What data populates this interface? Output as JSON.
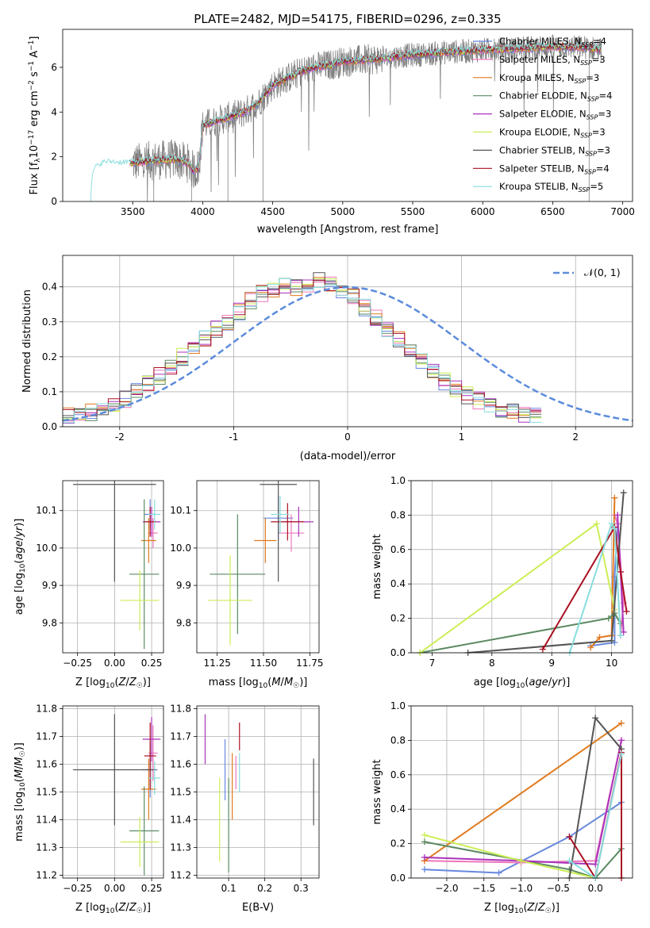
{
  "title": "PLATE=2482, MJD=54175, FIBERID=0296, z=0.335",
  "colors": {
    "chabrier_miles": "#6688dd",
    "salpeter_miles": "#ee77bb",
    "kroupa_miles": "#e07a1f",
    "chabrier_elodie": "#5a8a62",
    "salpeter_elodie": "#aa33bb",
    "kroupa_elodie": "#ccee55",
    "chabrier_stelib": "#555555",
    "salpeter_stelib": "#aa1122",
    "kroupa_stelib": "#88dddd",
    "observed": "#808080",
    "gaussian": "#5b8bdc",
    "grid": "#b0b0b0"
  },
  "chart_data": [
    {
      "id": "spectrum",
      "type": "line",
      "xlabel": "wavelength [Angstrom, rest frame]",
      "ylabel": "Flux [f_λ 10^-17 erg cm^-2 s^-1 A^-1]",
      "xlim": [
        3000,
        7070
      ],
      "ylim": [
        0,
        7.7
      ],
      "xticks": [
        3500,
        4000,
        4500,
        5000,
        5500,
        6000,
        6500,
        7000
      ],
      "yticks": [
        0,
        2,
        4,
        6
      ],
      "grid": false,
      "legend_position": "right",
      "legend": [
        {
          "main": "Chabrier MILES, N",
          "sub": "SSP",
          "tail": "=4",
          "key": "chabrier_miles"
        },
        {
          "main": "Salpeter MILES, N",
          "sub": "SSP",
          "tail": "=3",
          "key": "salpeter_miles"
        },
        {
          "main": "Kroupa MILES, N",
          "sub": "SSP",
          "tail": "=3",
          "key": "kroupa_miles"
        },
        {
          "main": "Chabrier ELODIE, N",
          "sub": "SSP",
          "tail": "=4",
          "key": "chabrier_elodie"
        },
        {
          "main": "Salpeter ELODIE, N",
          "sub": "SSP",
          "tail": "=3",
          "key": "salpeter_elodie"
        },
        {
          "main": "Kroupa ELODIE, N",
          "sub": "SSP",
          "tail": "=3",
          "key": "kroupa_elodie"
        },
        {
          "main": "Chabrier STELIB, N",
          "sub": "SSP",
          "tail": "=3",
          "key": "chabrier_stelib"
        },
        {
          "main": "Salpeter STELIB, N",
          "sub": "SSP",
          "tail": "=4",
          "key": "salpeter_stelib"
        },
        {
          "main": "Kroupa STELIB, N",
          "sub": "SSP",
          "tail": "=5",
          "key": "kroupa_stelib"
        }
      ],
      "model_continuum": {
        "x": [
          3200,
          3210,
          3220,
          3260,
          3300,
          3350,
          3400,
          3500,
          3600,
          3700,
          3800,
          3850,
          3900,
          3930,
          3970,
          4000,
          4100,
          4200,
          4300,
          4400,
          4500,
          4600,
          4700,
          4800,
          4900,
          5000,
          5100,
          5200,
          5300,
          5400,
          5500,
          5600,
          5700,
          5800,
          5900,
          6000,
          6100,
          6200,
          6300,
          6400,
          6500,
          6600,
          6700,
          6800,
          6850
        ],
        "y": [
          0,
          1.0,
          1.35,
          1.6,
          1.7,
          1.72,
          1.68,
          1.72,
          1.8,
          1.85,
          1.9,
          1.8,
          1.7,
          1.4,
          1.5,
          3.4,
          3.6,
          3.8,
          4.0,
          4.45,
          5.2,
          5.5,
          5.8,
          6.0,
          6.1,
          6.25,
          6.3,
          6.35,
          6.4,
          6.5,
          6.55,
          6.6,
          6.65,
          6.7,
          6.72,
          6.78,
          6.8,
          6.82,
          6.85,
          6.9,
          6.92,
          6.9,
          6.9,
          6.85,
          6.8
        ]
      },
      "observed_range": {
        "x_start": 3500,
        "x_end": 6850
      }
    },
    {
      "id": "residuals",
      "type": "line",
      "xlabel": "(data-model)/error",
      "ylabel": "Normed distribution",
      "xlim": [
        -2.5,
        2.5
      ],
      "ylim": [
        0,
        0.49
      ],
      "xticks": [
        -2,
        -1,
        0,
        1,
        2
      ],
      "yticks": [
        0.0,
        0.1,
        0.2,
        0.3,
        0.4
      ],
      "grid": true,
      "legend_position": "top-right",
      "legend_label": "N(0,1)",
      "gaussian": {
        "mean": 0,
        "sigma": 1
      },
      "hist_base": [
        0.03,
        0.03,
        0.04,
        0.05,
        0.065,
        0.08,
        0.1,
        0.12,
        0.145,
        0.17,
        0.2,
        0.225,
        0.25,
        0.28,
        0.3,
        0.33,
        0.36,
        0.38,
        0.39,
        0.4,
        0.4,
        0.41,
        0.42,
        0.41,
        0.39,
        0.37,
        0.34,
        0.31,
        0.28,
        0.25,
        0.22,
        0.19,
        0.16,
        0.13,
        0.11,
        0.09,
        0.075,
        0.06,
        0.05,
        0.04,
        0.035,
        0.03
      ],
      "bin_start": -2.5,
      "bin_width": 0.1
    },
    {
      "id": "age_vs_Z",
      "type": "scatter",
      "xlabel": "Z [log10(Z/Z☉)]",
      "ylabel": "age [log10(age/yr)]",
      "xlim": [
        -0.35,
        0.33
      ],
      "ylim": [
        9.72,
        10.18
      ],
      "xticks": [
        -0.25,
        0.0,
        0.25
      ],
      "xticklabels": [
        "−0.25",
        "0.00",
        "0.25"
      ],
      "yticks": [
        9.8,
        9.9,
        10.0,
        10.1
      ],
      "grid": true,
      "points": [
        {
          "key": "chabrier_miles",
          "x": 0.24,
          "y": 10.09,
          "xerr": 0.04,
          "yerr": 0.04
        },
        {
          "key": "salpeter_miles",
          "x": 0.26,
          "y": 10.04,
          "xerr": 0.03,
          "yerr": 0.04
        },
        {
          "key": "kroupa_miles",
          "x": 0.23,
          "y": 10.02,
          "xerr": 0.05,
          "yerr": 0.06
        },
        {
          "key": "chabrier_elodie",
          "x": 0.2,
          "y": 9.93,
          "xerr": 0.1,
          "yerr": 0.2
        },
        {
          "key": "salpeter_elodie",
          "x": 0.25,
          "y": 10.07,
          "xerr": 0.06,
          "yerr": 0.04
        },
        {
          "key": "kroupa_elodie",
          "x": 0.17,
          "y": 9.86,
          "xerr": 0.13,
          "yerr": 0.08
        },
        {
          "key": "chabrier_stelib",
          "x": 0.0,
          "y": 10.17,
          "xerr": 0.28,
          "yerr": 0.26
        },
        {
          "key": "salpeter_stelib",
          "x": 0.24,
          "y": 10.07,
          "xerr": 0.04,
          "yerr": 0.04
        },
        {
          "key": "kroupa_stelib",
          "x": 0.27,
          "y": 10.09,
          "xerr": 0.04,
          "yerr": 0.04
        }
      ]
    },
    {
      "id": "age_vs_mass",
      "type": "scatter",
      "xlabel": "mass [log10(M/M☉)]",
      "ylabel": "",
      "xlim": [
        11.14,
        11.8
      ],
      "ylim": [
        9.72,
        10.18
      ],
      "xticks": [
        11.25,
        11.5,
        11.75
      ],
      "xticklabels": [
        "11.25",
        "11.50",
        "11.75"
      ],
      "yticks": [
        9.8,
        9.9,
        10.0,
        10.1
      ],
      "grid": true,
      "points": [
        {
          "key": "chabrier_miles",
          "x": 11.58,
          "y": 10.08,
          "xerr": 0.08,
          "yerr": 0.06
        },
        {
          "key": "salpeter_miles",
          "x": 11.65,
          "y": 10.04,
          "xerr": 0.07,
          "yerr": 0.05
        },
        {
          "key": "kroupa_miles",
          "x": 11.51,
          "y": 10.02,
          "xerr": 0.06,
          "yerr": 0.06
        },
        {
          "key": "chabrier_elodie",
          "x": 11.36,
          "y": 9.93,
          "xerr": 0.15,
          "yerr": 0.16
        },
        {
          "key": "salpeter_elodie",
          "x": 11.69,
          "y": 10.07,
          "xerr": 0.08,
          "yerr": 0.04
        },
        {
          "key": "kroupa_elodie",
          "x": 11.32,
          "y": 9.86,
          "xerr": 0.12,
          "yerr": 0.12
        },
        {
          "key": "chabrier_stelib",
          "x": 11.58,
          "y": 10.17,
          "xerr": 0.1,
          "yerr": 0.26
        },
        {
          "key": "salpeter_stelib",
          "x": 11.63,
          "y": 10.07,
          "xerr": 0.09,
          "yerr": 0.05
        },
        {
          "key": "kroupa_stelib",
          "x": 11.59,
          "y": 10.09,
          "xerr": 0.05,
          "yerr": 0.05
        }
      ]
    },
    {
      "id": "weight_vs_age",
      "type": "line",
      "xlabel": "age [log10(age/yr)]",
      "ylabel": "mass weight",
      "xlim": [
        6.65,
        10.35
      ],
      "ylim": [
        0,
        1.0
      ],
      "xticks": [
        7,
        8,
        9,
        10
      ],
      "yticks": [
        0.0,
        0.2,
        0.4,
        0.6,
        0.8,
        1.0
      ],
      "grid": true,
      "series": [
        {
          "key": "chabrier_miles",
          "x": [
            9.65,
            10.05,
            10.05,
            10.1
          ],
          "y": [
            0.04,
            0.06,
            0.44,
            0.75
          ]
        },
        {
          "key": "salpeter_miles",
          "x": [
            10.05,
            10.1,
            10.2,
            10.15
          ],
          "y": [
            0.8,
            0.75,
            0.29,
            0.1
          ]
        },
        {
          "key": "kroupa_miles",
          "x": [
            9.65,
            9.8,
            10.0,
            10.05
          ],
          "y": [
            0.03,
            0.09,
            0.1,
            0.9
          ]
        },
        {
          "key": "chabrier_elodie",
          "x": [
            6.8,
            9.95,
            10.05,
            10.15
          ],
          "y": [
            0.0,
            0.2,
            0.23,
            0.17
          ]
        },
        {
          "key": "salpeter_elodie",
          "x": [
            10.1,
            10.15,
            10.2
          ],
          "y": [
            0.8,
            0.47,
            0.12
          ]
        },
        {
          "key": "kroupa_elodie",
          "x": [
            6.8,
            9.75,
            10.05
          ],
          "y": [
            0.0,
            0.75,
            0.25
          ]
        },
        {
          "key": "chabrier_stelib",
          "x": [
            7.6,
            10.0,
            10.2
          ],
          "y": [
            0.0,
            0.07,
            0.93
          ]
        },
        {
          "key": "salpeter_stelib",
          "x": [
            8.85,
            10.05,
            10.15,
            10.25
          ],
          "y": [
            0.02,
            0.73,
            0.47,
            0.24
          ]
        },
        {
          "key": "kroupa_stelib",
          "x": [
            9.3,
            10.0,
            10.05,
            10.15
          ],
          "y": [
            0.0,
            0.75,
            0.72,
            0.1
          ]
        }
      ]
    },
    {
      "id": "mass_vs_Z",
      "type": "scatter",
      "xlabel": "Z [log10(Z/Z☉)]",
      "ylabel": "mass [log10(M/M☉)]",
      "xlim": [
        -0.35,
        0.33
      ],
      "ylim": [
        11.19,
        11.81
      ],
      "xticks": [
        -0.25,
        0.0,
        0.25
      ],
      "xticklabels": [
        "−0.25",
        "0.00",
        "0.25"
      ],
      "yticks": [
        11.2,
        11.3,
        11.4,
        11.5,
        11.6,
        11.7,
        11.8
      ],
      "grid": true,
      "points": [
        {
          "key": "chabrier_miles",
          "x": 0.24,
          "y": 11.58,
          "xerr": 0.05,
          "yerr": 0.1
        },
        {
          "key": "salpeter_miles",
          "x": 0.26,
          "y": 11.64,
          "xerr": 0.03,
          "yerr": 0.1
        },
        {
          "key": "kroupa_miles",
          "x": 0.23,
          "y": 11.51,
          "xerr": 0.05,
          "yerr": 0.11
        },
        {
          "key": "chabrier_elodie",
          "x": 0.2,
          "y": 11.36,
          "xerr": 0.1,
          "yerr": 0.16
        },
        {
          "key": "salpeter_elodie",
          "x": 0.25,
          "y": 11.69,
          "xerr": 0.06,
          "yerr": 0.08
        },
        {
          "key": "kroupa_elodie",
          "x": 0.17,
          "y": 11.32,
          "xerr": 0.13,
          "yerr": 0.09
        },
        {
          "key": "chabrier_stelib",
          "x": 0.0,
          "y": 11.58,
          "xerr": 0.28,
          "yerr": 0.2
        },
        {
          "key": "salpeter_stelib",
          "x": 0.24,
          "y": 11.63,
          "xerr": 0.04,
          "yerr": 0.12
        },
        {
          "key": "kroupa_stelib",
          "x": 0.27,
          "y": 11.55,
          "xerr": 0.04,
          "yerr": 0.06
        }
      ]
    },
    {
      "id": "mass_vs_EBV",
      "type": "scatter",
      "xlabel": "E(B-V)",
      "ylabel": "",
      "xlim": [
        0.012,
        0.35
      ],
      "ylim": [
        11.19,
        11.81
      ],
      "xticks": [
        0.1,
        0.2,
        0.3
      ],
      "xticklabels": [
        "0.1",
        "0.2",
        "0.3"
      ],
      "yticks": [
        11.2,
        11.3,
        11.4,
        11.5,
        11.6,
        11.7,
        11.8
      ],
      "grid": true,
      "points": [
        {
          "key": "chabrier_miles",
          "x": 0.09,
          "y": 11.58,
          "xerr": 0,
          "yerr": 0.11
        },
        {
          "key": "salpeter_miles",
          "x": 0.12,
          "y": 11.57,
          "xerr": 0,
          "yerr": 0.06
        },
        {
          "key": "kroupa_miles",
          "x": 0.11,
          "y": 11.52,
          "xerr": 0,
          "yerr": 0.12
        },
        {
          "key": "chabrier_elodie",
          "x": 0.1,
          "y": 11.38,
          "xerr": 0,
          "yerr": 0.17
        },
        {
          "key": "salpeter_elodie",
          "x": 0.035,
          "y": 11.69,
          "xerr": 0,
          "yerr": 0.09
        },
        {
          "key": "kroupa_elodie",
          "x": 0.075,
          "y": 11.4,
          "xerr": 0,
          "yerr": 0.15
        },
        {
          "key": "chabrier_stelib",
          "x": 0.335,
          "y": 11.5,
          "xerr": 0,
          "yerr": 0.12
        },
        {
          "key": "salpeter_stelib",
          "x": 0.13,
          "y": 11.7,
          "xerr": 0,
          "yerr": 0.05
        },
        {
          "key": "kroupa_stelib",
          "x": 0.13,
          "y": 11.57,
          "xerr": 0,
          "yerr": 0.07
        }
      ]
    },
    {
      "id": "weight_vs_Z",
      "type": "line",
      "xlabel": "Z [log10(Z/Z☉)]",
      "ylabel": "mass weight",
      "xlim": [
        -2.48,
        0.5
      ],
      "ylim": [
        0,
        1.0
      ],
      "xticks": [
        -2.0,
        -1.5,
        -1.0,
        -0.5,
        0.0
      ],
      "xticklabels": [
        "−2.0",
        "−1.5",
        "−1.0",
        "−0.5",
        "0.0"
      ],
      "yticks": [
        0.0,
        0.2,
        0.4,
        0.6,
        0.8,
        1.0
      ],
      "grid": true,
      "series": [
        {
          "key": "chabrier_miles",
          "x": [
            -2.3,
            -1.3,
            -0.35,
            0.35
          ],
          "y": [
            0.05,
            0.03,
            0.24,
            0.44
          ]
        },
        {
          "key": "salpeter_miles",
          "x": [
            -2.3,
            -1.0,
            0.0,
            0.35
          ],
          "y": [
            0.1,
            0.09,
            0.1,
            0.8
          ]
        },
        {
          "key": "kroupa_miles",
          "x": [
            -2.3,
            0.35
          ],
          "y": [
            0.1,
            0.9
          ]
        },
        {
          "key": "chabrier_elodie",
          "x": [
            -2.3,
            -0.35,
            0.0,
            0.35
          ],
          "y": [
            0.21,
            0.05,
            0.0,
            0.17
          ]
        },
        {
          "key": "salpeter_elodie",
          "x": [
            -2.3,
            -1.0,
            0.0,
            0.35
          ],
          "y": [
            0.12,
            0.1,
            0.08,
            0.8
          ]
        },
        {
          "key": "kroupa_elodie",
          "x": [
            -2.3,
            -1.0,
            0.0
          ],
          "y": [
            0.25,
            0.1,
            0.0
          ]
        },
        {
          "key": "chabrier_stelib",
          "x": [
            -0.35,
            0.0,
            0.35
          ],
          "y": [
            0.0,
            0.93,
            0.75
          ]
        },
        {
          "key": "salpeter_stelib",
          "x": [
            -0.35,
            0.0,
            0.35,
            0.35
          ],
          "y": [
            0.24,
            0.0,
            0.73,
            0.0
          ]
        },
        {
          "key": "kroupa_stelib",
          "x": [
            -0.35,
            0.0,
            0.35
          ],
          "y": [
            0.1,
            0.0,
            0.72
          ]
        }
      ]
    }
  ]
}
